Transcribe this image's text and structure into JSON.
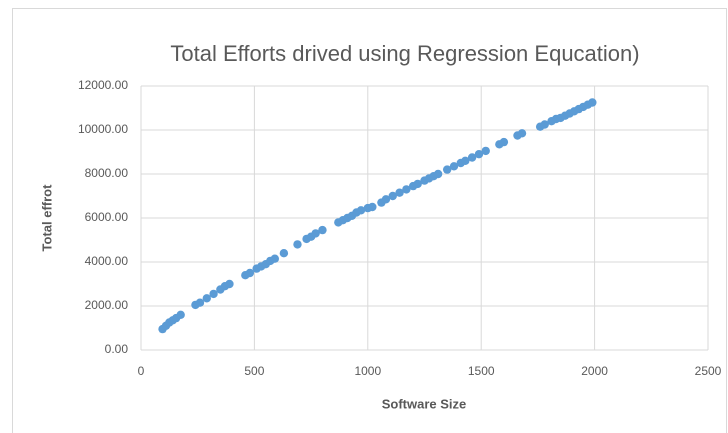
{
  "chart_data": {
    "type": "scatter",
    "title": "Total Efforts drived using Regression Equcation)",
    "xlabel": "Software Size",
    "ylabel": "Total effrot",
    "color": "#5b9bd5",
    "grid": true,
    "xlim": [
      0,
      2500
    ],
    "xticks": [
      0,
      500,
      1000,
      1500,
      2000,
      2500
    ],
    "ylim": [
      0,
      12000
    ],
    "yticks": [
      {
        "value": 0,
        "label": "0.00"
      },
      {
        "value": 2000,
        "label": "2000.00"
      },
      {
        "value": 4000,
        "label": "4000.00"
      },
      {
        "value": 6000,
        "label": "6000.00"
      },
      {
        "value": 8000,
        "label": "8000.00"
      },
      {
        "value": 10000,
        "label": "10000.00"
      },
      {
        "value": 12000,
        "label": "12000.00"
      }
    ],
    "x": [
      95,
      110,
      125,
      140,
      155,
      175,
      240,
      260,
      290,
      320,
      350,
      370,
      390,
      460,
      480,
      510,
      530,
      550,
      570,
      590,
      630,
      690,
      730,
      750,
      770,
      800,
      870,
      890,
      910,
      930,
      950,
      970,
      1000,
      1020,
      1060,
      1080,
      1110,
      1140,
      1170,
      1200,
      1220,
      1250,
      1270,
      1290,
      1310,
      1350,
      1380,
      1410,
      1430,
      1460,
      1490,
      1520,
      1580,
      1600,
      1660,
      1680,
      1760,
      1780,
      1810,
      1830,
      1850,
      1870,
      1890,
      1910,
      1930,
      1950,
      1970,
      1990
    ],
    "values": [
      950,
      1100,
      1250,
      1350,
      1450,
      1600,
      2050,
      2150,
      2350,
      2550,
      2750,
      2900,
      3000,
      3400,
      3500,
      3700,
      3800,
      3900,
      4050,
      4150,
      4400,
      4800,
      5050,
      5150,
      5300,
      5450,
      5800,
      5900,
      6000,
      6100,
      6250,
      6350,
      6450,
      6500,
      6700,
      6850,
      7000,
      7150,
      7300,
      7450,
      7550,
      7700,
      7800,
      7900,
      8000,
      8200,
      8350,
      8500,
      8600,
      8750,
      8900,
      9050,
      9350,
      9450,
      9750,
      9850,
      10150,
      10250,
      10400,
      10500,
      10550,
      10650,
      10750,
      10850,
      10950,
      11050,
      11150,
      11250
    ]
  }
}
